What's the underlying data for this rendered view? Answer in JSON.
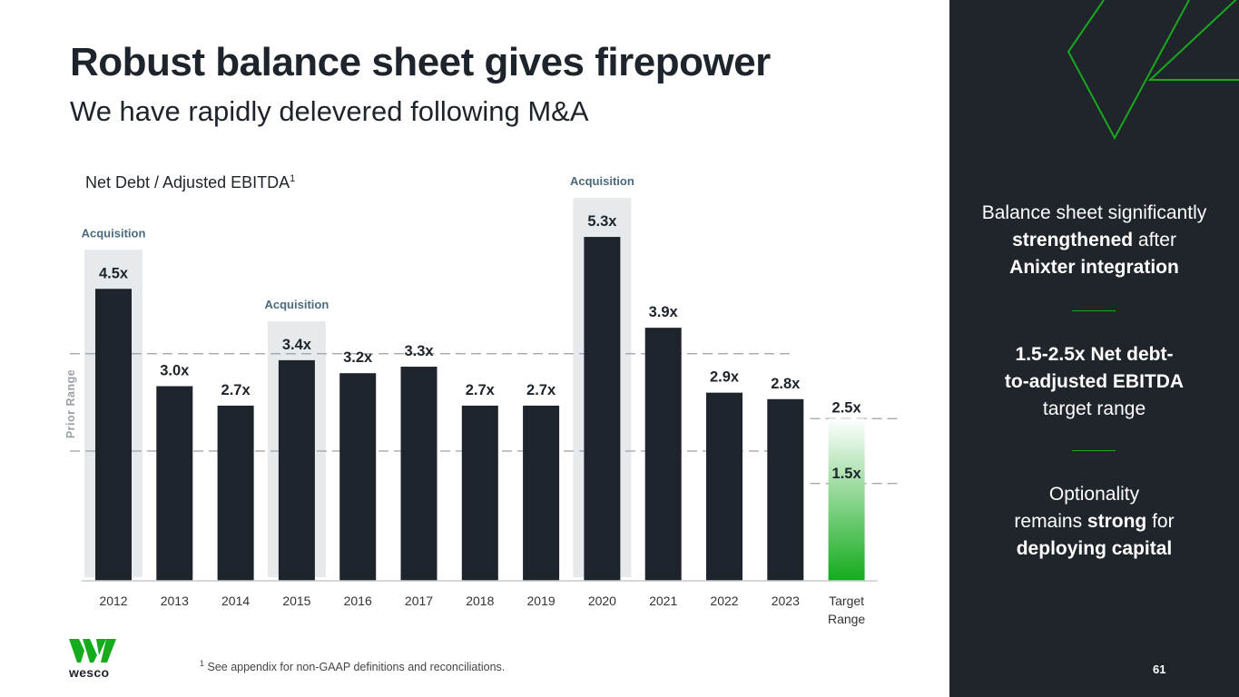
{
  "slide": {
    "title": "Robust balance sheet gives firepower",
    "subtitle": "We have rapidly delevered following M&A",
    "footnote_marker": "1",
    "footnote_text": " See appendix for non-GAAP definitions and reconciliations.",
    "logo_text": "wesco",
    "page_number": "61"
  },
  "chart_data": {
    "type": "bar",
    "title": "Net Debt / Adjusted EBITDA",
    "title_superscript": "1",
    "categories": [
      "2012",
      "2013",
      "2014",
      "2015",
      "2016",
      "2017",
      "2018",
      "2019",
      "2020",
      "2021",
      "2022",
      "2023"
    ],
    "values": [
      4.5,
      3.0,
      2.7,
      3.4,
      3.2,
      3.3,
      2.7,
      2.7,
      5.3,
      3.9,
      2.9,
      2.8
    ],
    "value_labels": [
      "4.5x",
      "3.0x",
      "2.7x",
      "3.4x",
      "3.2x",
      "3.3x",
      "2.7x",
      "2.7x",
      "5.3x",
      "3.9x",
      "2.9x",
      "2.8x"
    ],
    "acquisition_years": [
      "2012",
      "2015",
      "2020"
    ],
    "acquisition_label": "Acquisition",
    "target": {
      "category": "Target\nRange",
      "low": 1.5,
      "high": 2.5,
      "low_label": "1.5x",
      "high_label": "2.5x"
    },
    "prior_range": {
      "label": "Prior Range",
      "low": 2.0,
      "high": 3.5
    },
    "ylim": [
      0,
      6
    ],
    "xlabel": "",
    "ylabel": "",
    "colors": {
      "bar": "#1e242b",
      "highlight": "#e6eaed",
      "acq_text": "#4a6a7e",
      "target_top": "#ffffff",
      "target_bottom": "#14ab1c",
      "dash": "#9aa0a5",
      "axis": "#c8ccd0"
    }
  },
  "sidebar": {
    "block1": {
      "line1": "Balance sheet significantly",
      "strong1": "strengthened",
      "after1": " after",
      "strong2": "Anixter integration"
    },
    "block2": {
      "strong1": "1.5-2.5x Net debt-",
      "strong2": "to-adjusted EBITDA",
      "line3": "target range"
    },
    "block3": {
      "line1": "Optionality",
      "pre2": "remains ",
      "strong2": "strong",
      "post2": " for",
      "strong3": "deploying capital"
    },
    "accent_color": "#17a81e"
  }
}
